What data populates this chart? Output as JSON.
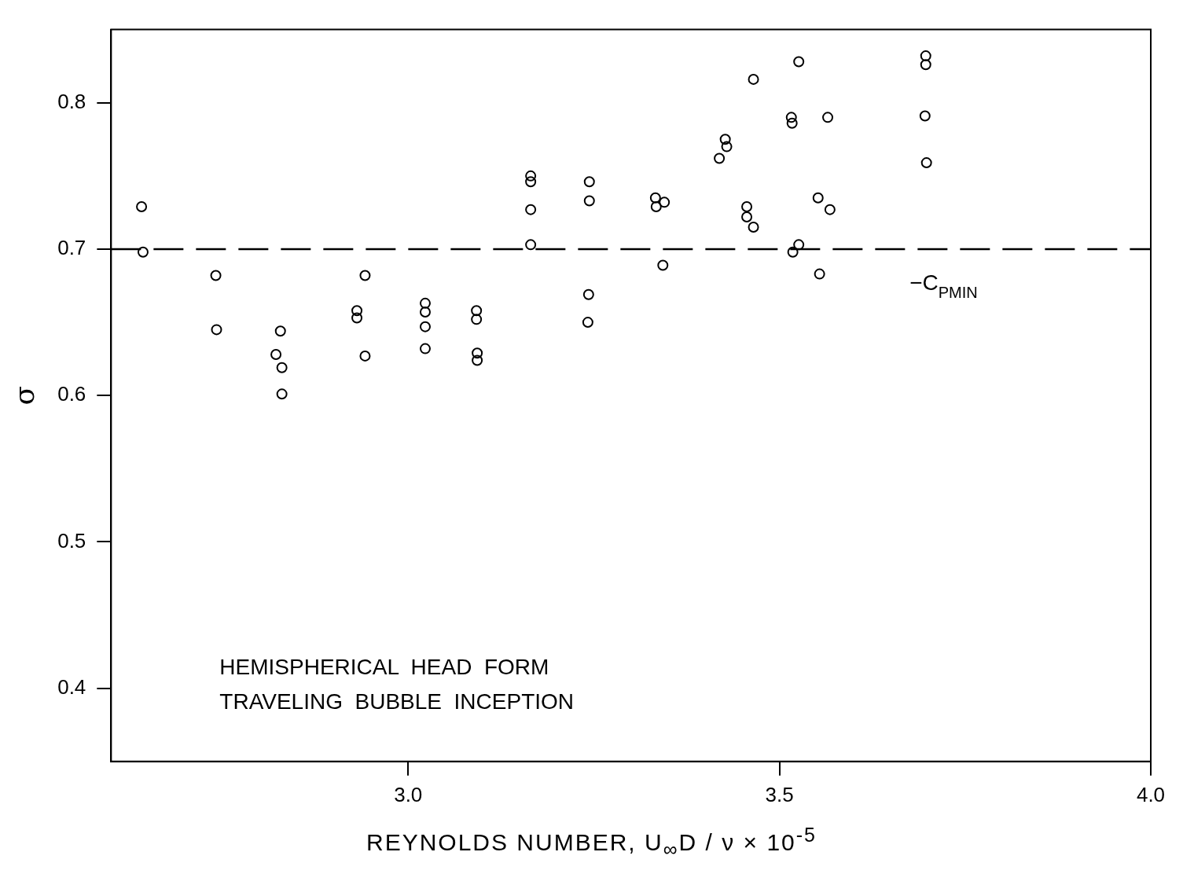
{
  "chart_data": {
    "type": "scatter",
    "xlabel": "REYNOLDS NUMBER,  U$_{∞}$D / ν  × 10$^{-5}$",
    "ylabel": "σ",
    "x": [
      2.641,
      2.643,
      2.741,
      2.742,
      2.822,
      2.828,
      2.83,
      2.83,
      2.931,
      2.931,
      2.942,
      2.942,
      3.023,
      3.023,
      3.023,
      3.023,
      3.092,
      3.092,
      3.093,
      3.093,
      3.165,
      3.165,
      3.165,
      3.165,
      3.244,
      3.244,
      3.243,
      3.242,
      3.333,
      3.334,
      3.345,
      3.343,
      3.419,
      3.427,
      3.429,
      3.456,
      3.456,
      3.465,
      3.465,
      3.516,
      3.517,
      3.518,
      3.526,
      3.526,
      3.552,
      3.554,
      3.565,
      3.568,
      3.697,
      3.697,
      3.696,
      3.698
    ],
    "values": [
      0.729,
      0.698,
      0.682,
      0.645,
      0.628,
      0.644,
      0.619,
      0.601,
      0.658,
      0.653,
      0.682,
      0.627,
      0.663,
      0.657,
      0.647,
      0.632,
      0.658,
      0.652,
      0.629,
      0.624,
      0.75,
      0.746,
      0.727,
      0.703,
      0.746,
      0.733,
      0.669,
      0.65,
      0.735,
      0.729,
      0.732,
      0.689,
      0.762,
      0.775,
      0.77,
      0.729,
      0.722,
      0.715,
      0.816,
      0.79,
      0.786,
      0.698,
      0.703,
      0.828,
      0.735,
      0.683,
      0.79,
      0.727,
      0.832,
      0.826,
      0.791,
      0.759
    ],
    "color": "#000000",
    "marker": "circle",
    "xlim": [
      2.6,
      4.0
    ],
    "xticks": [
      {
        "value": 3,
        "label": "3.0"
      },
      3.5,
      {
        "value": 4,
        "label": "4.0"
      }
    ],
    "ylim": [
      0.35,
      0.85
    ],
    "yticks": [
      0.4,
      0.5,
      0.6,
      0.7,
      0.8
    ],
    "ref_lines": [
      {
        "axis": "y",
        "value": 0.7,
        "label": "−C$_{PMIN}$",
        "color": "#000000",
        "line_style": "dashed"
      }
    ],
    "annotations": [
      "HEMISPHERICAL  HEAD  FORM",
      "TRAVELING  BUBBLE  INCEPTION"
    ],
    "grid": false,
    "legend": false
  }
}
